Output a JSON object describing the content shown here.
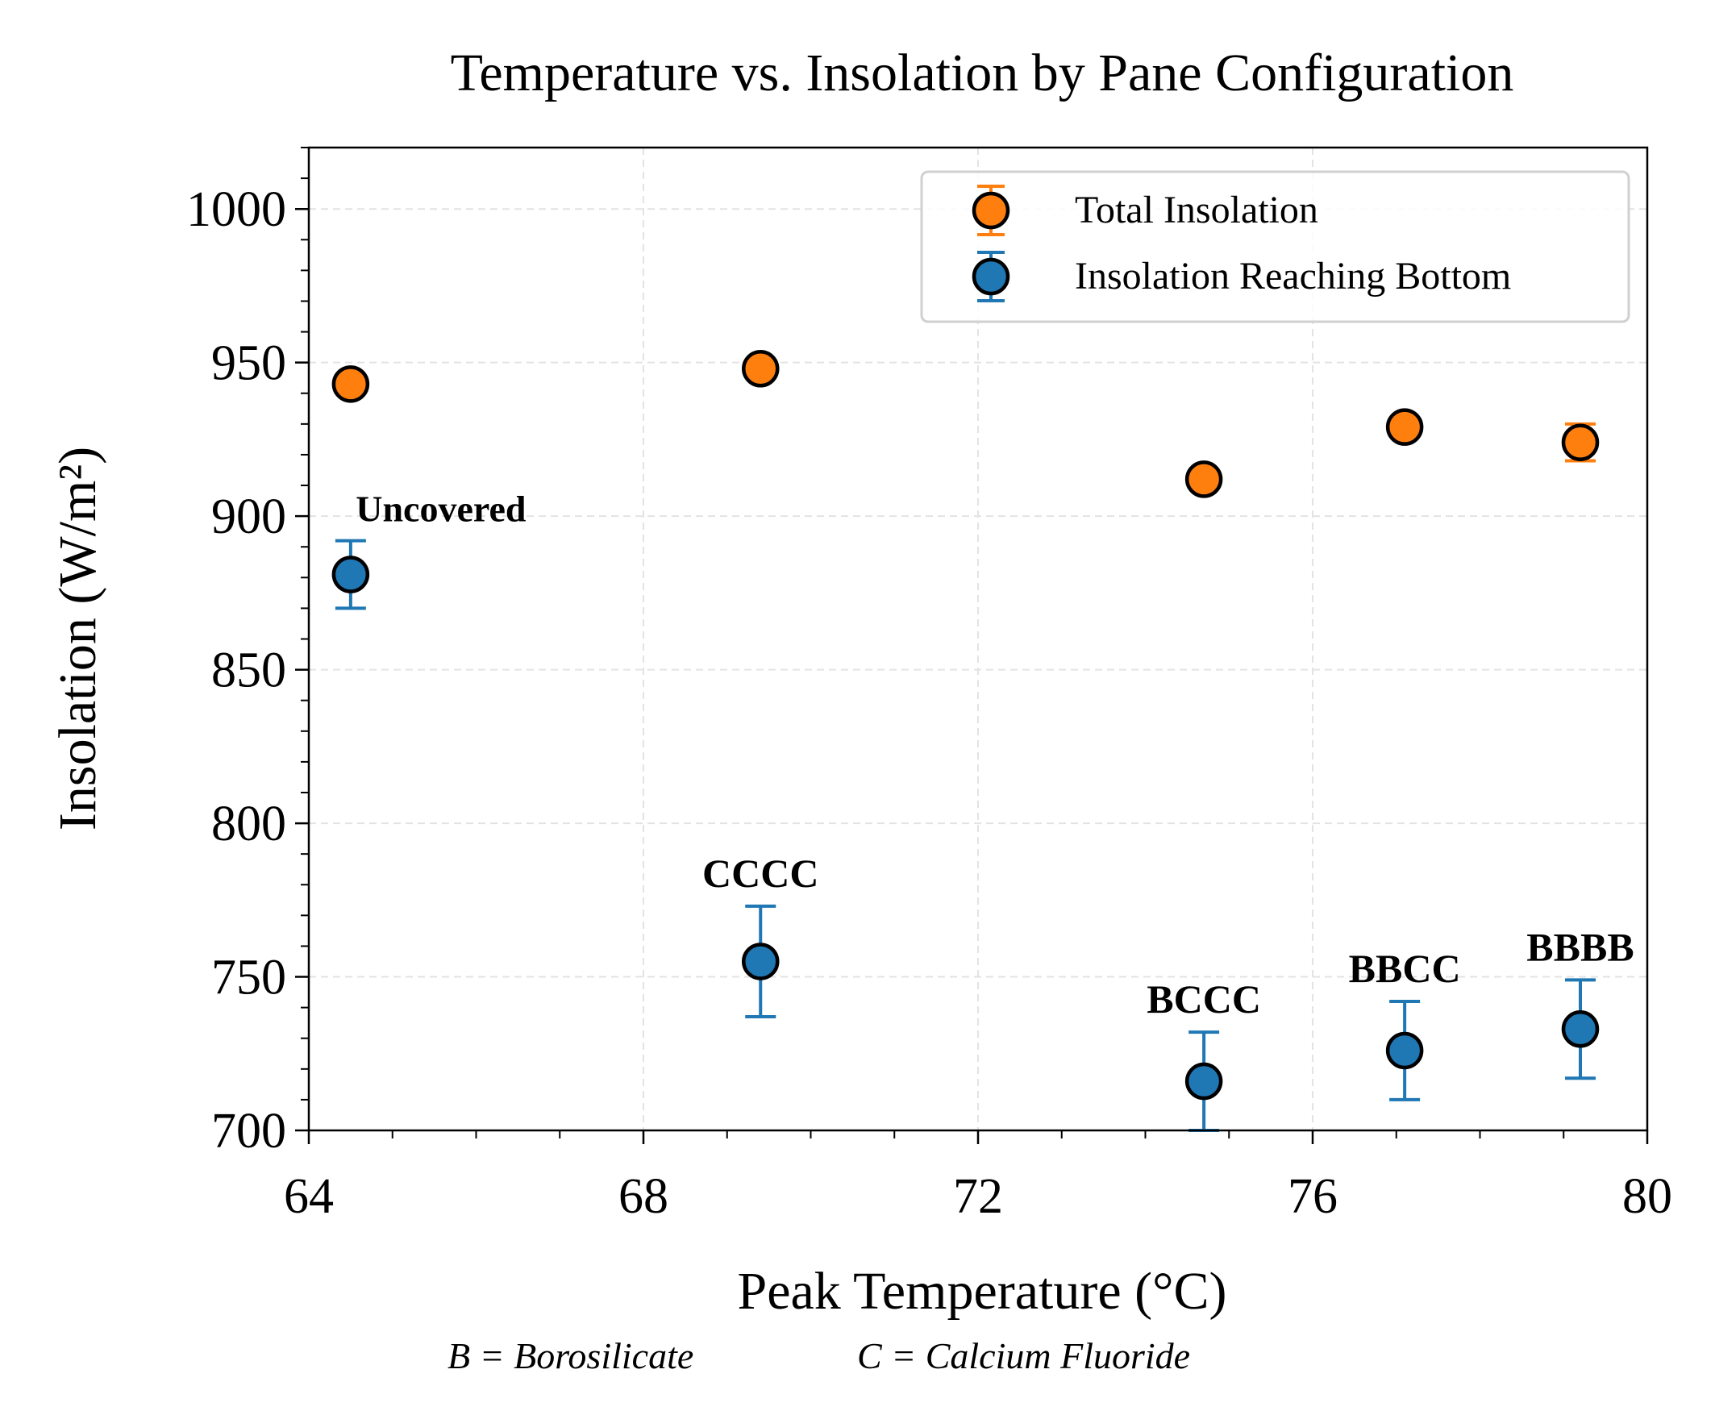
{
  "chart_data": {
    "type": "scatter",
    "title": "Temperature vs. Insolation by Pane Configuration",
    "xlabel": "Peak Temperature (°C)",
    "ylabel": "Insolation (W/m²)",
    "xlim": [
      64,
      80
    ],
    "ylim": [
      700,
      1020
    ],
    "xticks": [
      64,
      68,
      72,
      76,
      80
    ],
    "yticks": [
      700,
      750,
      800,
      850,
      900,
      950,
      1000
    ],
    "grid": true,
    "legend_position": "top-right",
    "footnote": [
      "B = Borosilicate",
      "C = Calcium Fluoride"
    ],
    "series": [
      {
        "name": "Total Insolation",
        "color": "#ff7f0e",
        "x": [
          64.5,
          69.4,
          74.7,
          77.1,
          79.2
        ],
        "y": [
          943,
          948,
          912,
          929,
          924
        ],
        "yerr": [
          1,
          1,
          1,
          1,
          6
        ]
      },
      {
        "name": "Insolation Reaching Bottom",
        "color": "#1f77b4",
        "x": [
          64.5,
          69.4,
          74.7,
          77.1,
          79.2
        ],
        "y": [
          881,
          755,
          716,
          726,
          733
        ],
        "yerr": [
          11,
          18,
          16,
          16,
          16
        ],
        "labels": [
          "Uncovered",
          "CCCC",
          "BCCC",
          "BBCC",
          "BBBB"
        ]
      }
    ]
  }
}
